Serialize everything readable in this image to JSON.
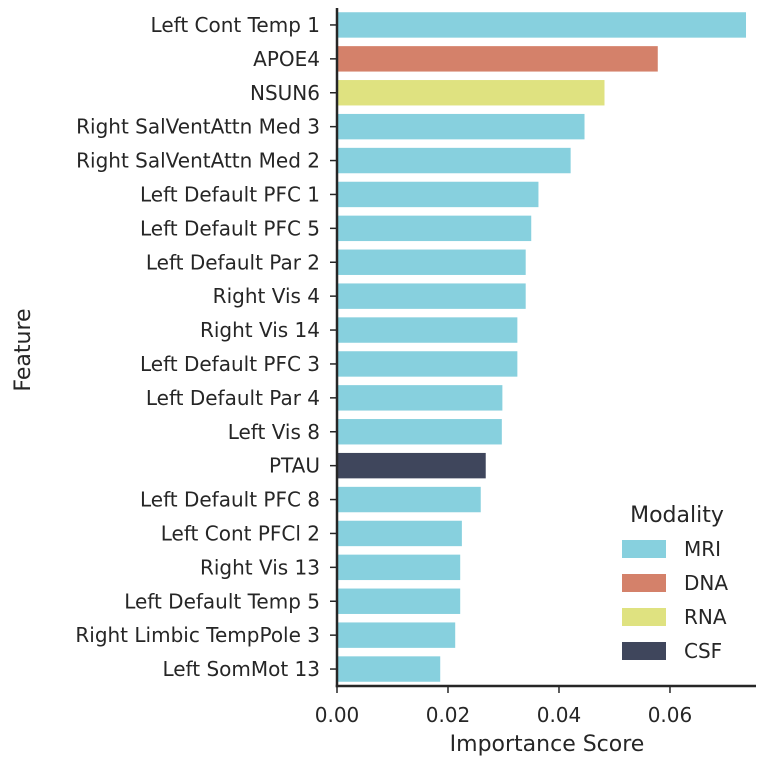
{
  "chart_data": {
    "type": "bar",
    "orientation": "horizontal",
    "title": "",
    "xlabel": "Importance Score",
    "ylabel": "Feature",
    "xlim": [
      0,
      0.0755
    ],
    "xticks": [
      0.0,
      0.02,
      0.04,
      0.06
    ],
    "xtick_labels": [
      "0.00",
      "0.02",
      "0.04",
      "0.06"
    ],
    "grid": false,
    "categories": [
      "Left Cont Temp 1",
      "APOE4",
      "NSUN6",
      "Right SalVentAttn Med 3",
      "Right SalVentAttn Med 2",
      "Left Default PFC 1",
      "Left Default PFC 5",
      "Left Default Par 2",
      "Right Vis 4",
      "Right Vis 14",
      "Left Default PFC 3",
      "Left Default Par 4",
      "Left Vis 8",
      "PTAU",
      "Left Default PFC 8",
      "Left Cont PFCl 2",
      "Right Vis 13",
      "Left Default Temp 5",
      "Right Limbic TempPole 3",
      "Left SomMot 13"
    ],
    "values": [
      0.0737,
      0.0578,
      0.0482,
      0.0446,
      0.0421,
      0.0363,
      0.035,
      0.034,
      0.034,
      0.0325,
      0.0325,
      0.0298,
      0.0297,
      0.0268,
      0.0259,
      0.0225,
      0.0222,
      0.0222,
      0.0213,
      0.0186
    ],
    "modality": [
      "MRI",
      "DNA",
      "RNA",
      "MRI",
      "MRI",
      "MRI",
      "MRI",
      "MRI",
      "MRI",
      "MRI",
      "MRI",
      "MRI",
      "MRI",
      "CSF",
      "MRI",
      "MRI",
      "MRI",
      "MRI",
      "MRI",
      "MRI"
    ],
    "legend": {
      "title": "Modality",
      "placement": "lower-right",
      "entries": [
        {
          "name": "MRI",
          "color": "#87d0de"
        },
        {
          "name": "DNA",
          "color": "#d4816a"
        },
        {
          "name": "RNA",
          "color": "#dfe280"
        },
        {
          "name": "CSF",
          "color": "#3f465c"
        }
      ]
    }
  }
}
